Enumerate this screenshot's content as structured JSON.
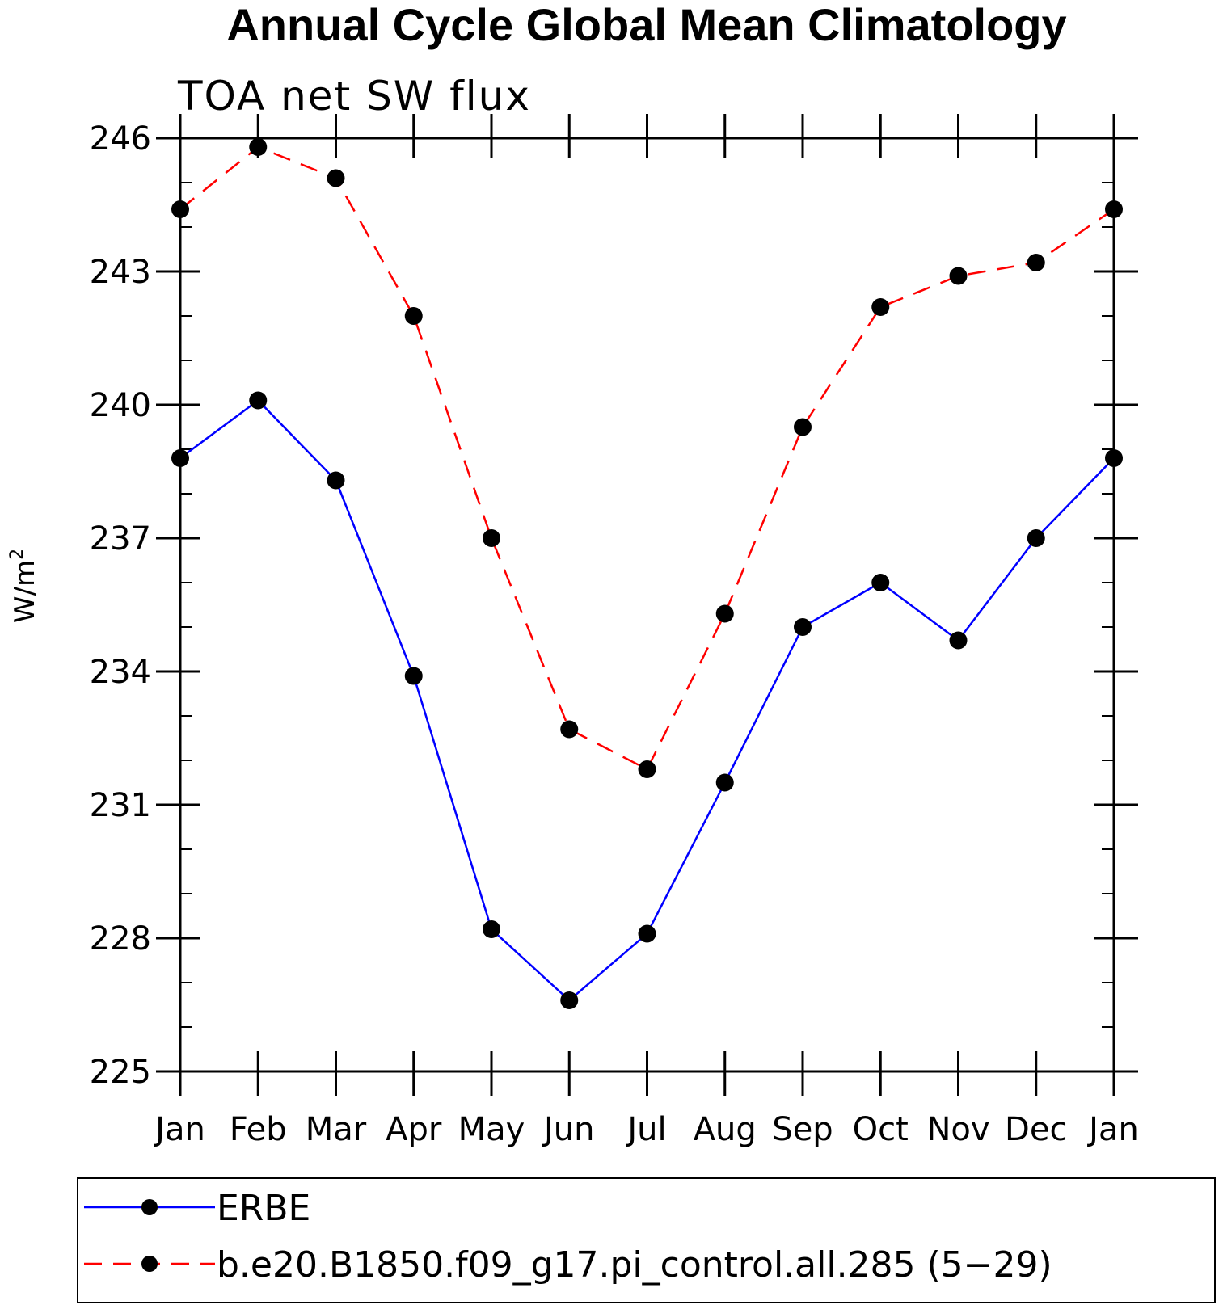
{
  "chart_data": {
    "type": "line",
    "title": "Annual Cycle Global Mean Climatology",
    "subtitle": "TOA net SW flux",
    "xlabel": "",
    "ylabel": "W/m",
    "ylabel_superscript": "2",
    "categories": [
      "Jan",
      "Feb",
      "Mar",
      "Apr",
      "May",
      "Jun",
      "Jul",
      "Aug",
      "Sep",
      "Oct",
      "Nov",
      "Dec",
      "Jan"
    ],
    "ylim": [
      225,
      246
    ],
    "yticks": [
      225,
      228,
      231,
      234,
      237,
      240,
      243,
      246
    ],
    "series": [
      {
        "name": "ERBE",
        "color": "#0000ff",
        "dash": "solid",
        "marker": "filled-circle",
        "values": [
          238.8,
          240.1,
          238.3,
          233.9,
          228.2,
          226.6,
          228.1,
          231.5,
          235.0,
          236.0,
          234.7,
          237.0,
          238.8
        ]
      },
      {
        "name": "b.e20.B1850.f09_g17.pi_control.all.285 (5−29)",
        "color": "#ff0000",
        "dash": "dashed",
        "marker": "filled-circle",
        "values": [
          244.4,
          245.8,
          245.1,
          242.0,
          237.0,
          232.7,
          231.8,
          235.3,
          239.5,
          242.2,
          242.9,
          243.2,
          244.4
        ]
      }
    ],
    "grid": false,
    "legend_position": "bottom"
  }
}
